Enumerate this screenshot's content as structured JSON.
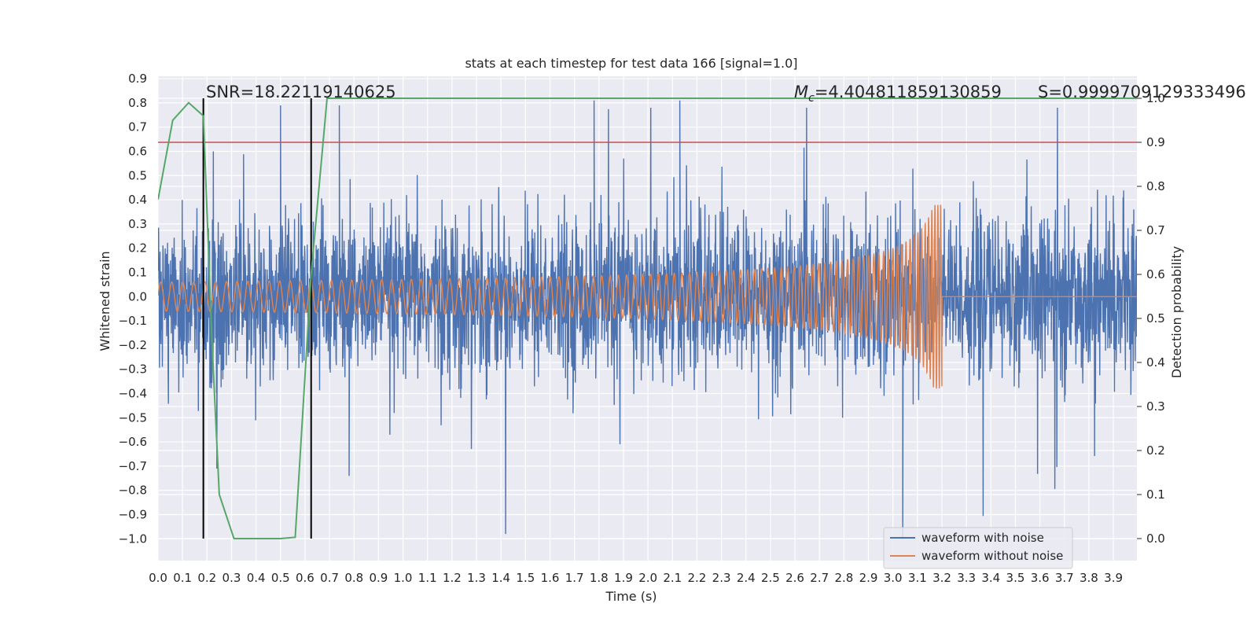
{
  "chart_data": {
    "type": "line",
    "title": "stats at each timestep for test data 166 [signal=1.0]",
    "xlabel": "Time (s)",
    "ylabel": "Whitened strain",
    "y2label": "Detection probability",
    "xlim": [
      0.0,
      3.996
    ],
    "ylim": [
      -1.09,
      0.91
    ],
    "y2lim": [
      -0.05,
      1.05
    ],
    "xticks": [
      "0.0",
      "0.1",
      "0.2",
      "0.3",
      "0.4",
      "0.5",
      "0.6",
      "0.7",
      "0.8",
      "0.9",
      "1.0",
      "1.1",
      "1.2",
      "1.3",
      "1.4",
      "1.5",
      "1.6",
      "1.7",
      "1.8",
      "1.9",
      "2.0",
      "2.1",
      "2.2",
      "2.3",
      "2.4",
      "2.5",
      "2.6",
      "2.7",
      "2.8",
      "2.9",
      "3.0",
      "3.1",
      "3.2",
      "3.3",
      "3.4",
      "3.5",
      "3.6",
      "3.7",
      "3.8",
      "3.9"
    ],
    "yticks": [
      "0.9",
      "0.8",
      "0.7",
      "0.6",
      "0.5",
      "0.4",
      "0.3",
      "0.2",
      "0.1",
      "0.0",
      "−0.1",
      "−0.2",
      "−0.3",
      "−0.4",
      "−0.5",
      "−0.6",
      "−0.7",
      "−0.8",
      "−0.9",
      "−1.0"
    ],
    "y2ticks": [
      "1.0",
      "0.9",
      "0.8",
      "0.7",
      "0.6",
      "0.5",
      "0.4",
      "0.3",
      "0.2",
      "0.1",
      "0.0"
    ],
    "annotations": {
      "snr": "SNR=18.22119140625",
      "mc_symbol": "M",
      "mc_sub": "c",
      "mc_value": "=4.404811859130859",
      "s": "S=0.9999709129333496"
    },
    "threshold": 0.9,
    "vlines_x": [
      0.185,
      0.625
    ],
    "series": [
      {
        "name": "waveform with noise",
        "color": "#4c72b0",
        "envelope": "gaussian noise roughly ±0.4, peaks to 0.81 and -1.0"
      },
      {
        "name": "waveform without noise",
        "color": "#dd8452",
        "envelope": "chirp, amplitude 0.06 rising to 0.38 at 3.2 s, then zero"
      },
      {
        "name": "detection probability",
        "color": "#55a868",
        "x": [
          0.0,
          0.06,
          0.125,
          0.185,
          0.22,
          0.25,
          0.31,
          0.37,
          0.5,
          0.56,
          0.625,
          0.69,
          3.996
        ],
        "y": [
          0.77,
          0.95,
          0.99,
          0.96,
          0.45,
          0.1,
          0.0,
          0.0,
          0.0,
          0.003,
          0.6,
          1.0,
          1.0
        ]
      }
    ],
    "legend": [
      "waveform with noise",
      "waveform without noise"
    ],
    "legend_loc": "lower-right",
    "colors": {
      "background": "#eaeaf2",
      "grid": "#ffffff",
      "threshold": "#c44e52",
      "vline": "#000000"
    }
  }
}
